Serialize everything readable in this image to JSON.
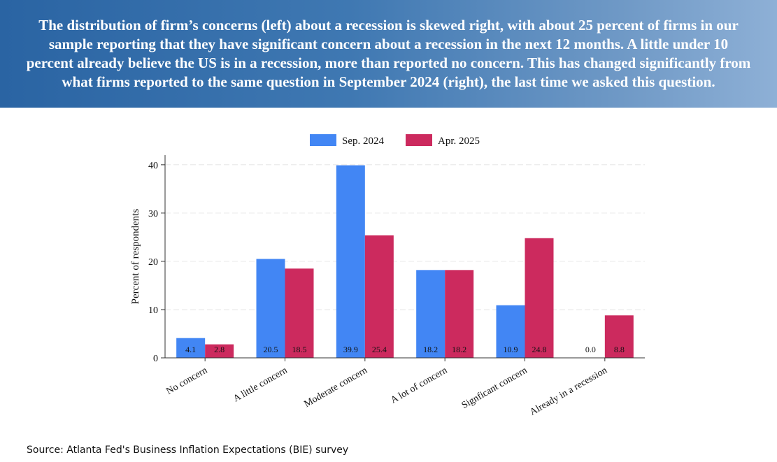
{
  "headline": "The distribution of firm’s concerns (left) about a recession is skewed right, with about 25 percent of firms in our sample reporting that they have significant concern about a recession in the next 12 months. A little under 10 percent already believe the US is in a recession, more than reported no concern. This has changed significantly from what firms reported to the same question in September 2024 (right), the last time we asked this question.",
  "source": "Source: Atlanta Fed's Business Inflation Expectations (BIE) survey",
  "chart_data": {
    "type": "bar",
    "title": "",
    "xlabel": "",
    "ylabel": "Percent of respondents",
    "ylim": [
      0,
      42
    ],
    "yticks": [
      0,
      10,
      20,
      30,
      40
    ],
    "grid": true,
    "legend_position": "top",
    "categories": [
      "No concern",
      "A little concern",
      "Moderate concern",
      "A lot of concern",
      "Signficant concern",
      "Already in a recession"
    ],
    "series": [
      {
        "name": "Sep. 2024",
        "color": "#4286f4",
        "values": [
          4.1,
          20.5,
          39.9,
          18.2,
          10.9,
          0.0
        ],
        "labels": [
          "4.1",
          "20.5",
          "39.9",
          "18.2",
          "10.9",
          "0.0"
        ]
      },
      {
        "name": "Apr. 2025",
        "color": "#cc2a5e",
        "values": [
          2.8,
          18.5,
          25.4,
          18.2,
          24.8,
          8.8
        ],
        "labels": [
          "2.8",
          "18.5",
          "25.4",
          "18.2",
          "24.8",
          "8.8"
        ]
      }
    ]
  }
}
